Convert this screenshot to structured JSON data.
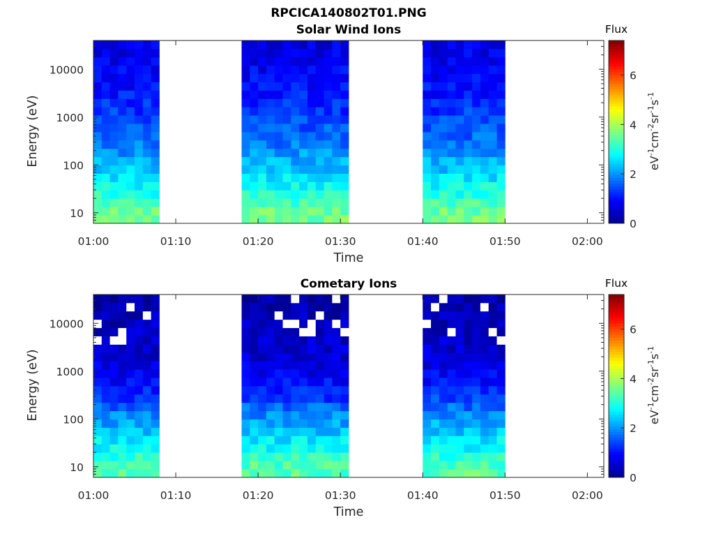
{
  "figure_title": "RPCICA140802T01.PNG",
  "colormap": [
    "#00008f",
    "#0000ff",
    "#0080ff",
    "#00ffff",
    "#80ff80",
    "#ffff00",
    "#ff8000",
    "#ff0000",
    "#800000"
  ],
  "chart_data": [
    {
      "type": "heatmap",
      "title": "Solar Wind Ions",
      "xlabel": "Time",
      "ylabel": "Energy (eV)",
      "yscale": "log",
      "xlim": [
        "01:00",
        "02:02"
      ],
      "ylim": [
        6,
        40000
      ],
      "xticks": [
        "01:00",
        "01:10",
        "01:20",
        "01:30",
        "01:40",
        "01:50",
        "02:00"
      ],
      "yticks": [
        "10",
        "100",
        "1000",
        "10000"
      ],
      "colorbar": {
        "title": "Flux",
        "label": "eV-1cm-2sr-1s-1",
        "range": [
          0,
          7.4
        ],
        "ticks": [
          "0",
          "2",
          "4",
          "6"
        ]
      },
      "data_blocks": [
        {
          "start": "01:00",
          "end": "01:08"
        },
        {
          "start": "01:18",
          "end": "01:31"
        },
        {
          "start": "01:40",
          "end": "01:50"
        }
      ],
      "flux_profile": {
        "energy_eV": [
          10,
          20,
          40,
          70,
          130,
          250,
          500,
          1000,
          2000,
          4000,
          8000,
          16000,
          32000
        ],
        "flux": [
          3.6,
          3.1,
          2.8,
          2.4,
          2.2,
          1.8,
          1.6,
          1.4,
          1.2,
          1.0,
          0.9,
          0.8,
          0.7
        ]
      }
    },
    {
      "type": "heatmap",
      "title": "Cometary Ions",
      "xlabel": "Time",
      "ylabel": "Energy (eV)",
      "yscale": "log",
      "xlim": [
        "01:00",
        "02:02"
      ],
      "ylim": [
        6,
        40000
      ],
      "xticks": [
        "01:00",
        "01:10",
        "01:20",
        "01:30",
        "01:40",
        "01:50",
        "02:00"
      ],
      "yticks": [
        "10",
        "100",
        "1000",
        "10000"
      ],
      "colorbar": {
        "title": "Flux",
        "label": "eV-1cm-2sr-1s-1",
        "range": [
          0,
          7.4
        ],
        "ticks": [
          "0",
          "2",
          "4",
          "6"
        ]
      },
      "data_blocks": [
        {
          "start": "01:00",
          "end": "01:08"
        },
        {
          "start": "01:18",
          "end": "01:31"
        },
        {
          "start": "01:40",
          "end": "01:50"
        }
      ],
      "flux_profile": {
        "energy_eV": [
          10,
          20,
          40,
          70,
          130,
          250,
          500,
          1000,
          2000,
          4000,
          8000,
          16000,
          32000
        ],
        "flux": [
          3.4,
          2.9,
          2.6,
          2.2,
          1.9,
          1.4,
          1.0,
          0.8,
          0.6,
          0.5,
          0.4,
          0.3,
          0.2
        ]
      }
    }
  ]
}
